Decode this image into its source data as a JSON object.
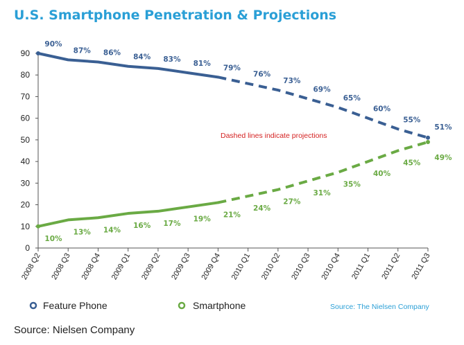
{
  "caption": "Source: Nielsen Company",
  "colors": {
    "feature_phone": "#3a5f93",
    "smartphone": "#6aaa44",
    "title": "#2a9fd6",
    "annotation": "#d42020",
    "source": "#2a9fd6"
  },
  "chart_data": {
    "type": "line",
    "title": "U.S. Smartphone Penetration & Projections",
    "xlabel": "",
    "ylabel": "",
    "ylim": [
      0,
      90
    ],
    "yticks": [
      0,
      10,
      20,
      30,
      40,
      50,
      60,
      70,
      80,
      90
    ],
    "grid": false,
    "legend_position": "bottom",
    "categories": [
      "2008 Q2",
      "2008 Q3",
      "2008 Q4",
      "2009 Q1",
      "2009 Q2",
      "2009 Q3",
      "2009 Q4",
      "2010 Q1",
      "2010 Q2",
      "2010 Q3",
      "2010 Q4",
      "2011 Q1",
      "2011 Q2",
      "2011 Q3"
    ],
    "series": [
      {
        "name": "Feature Phone",
        "values": [
          90,
          87,
          86,
          84,
          83,
          81,
          79,
          76,
          73,
          69,
          65,
          60,
          55,
          51
        ],
        "labels": [
          "90%",
          "87%",
          "86%",
          "84%",
          "83%",
          "81%",
          "79%",
          "76%",
          "73%",
          "69%",
          "65%",
          "60%",
          "55%",
          "51%"
        ]
      },
      {
        "name": "Smartphone",
        "values": [
          10,
          13,
          14,
          16,
          17,
          19,
          21,
          24,
          27,
          31,
          35,
          40,
          45,
          49
        ],
        "labels": [
          "10%",
          "13%",
          "14%",
          "16%",
          "17%",
          "19%",
          "21%",
          "24%",
          "27%",
          "31%",
          "35%",
          "40%",
          "45%",
          "49%"
        ]
      }
    ],
    "projection_start": "2009 Q4",
    "annotation": "Dashed lines indicate projections",
    "source": "Source: The Nielsen Company"
  }
}
